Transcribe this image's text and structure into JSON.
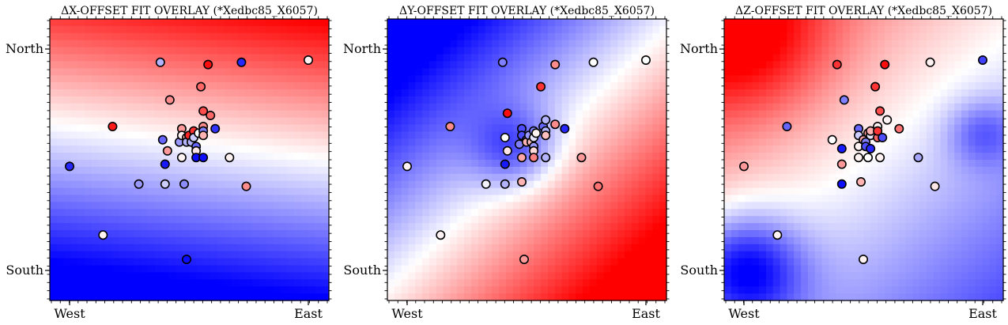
{
  "chart_data": [
    {
      "type": "scatter",
      "title": "ΔX-OFFSET FIT OVERLAY (*Xedbc85_X6057)",
      "x_ticks": [
        "West",
        "East"
      ],
      "y_ticks": [
        "North",
        "South"
      ],
      "xlim": [
        0,
        1
      ],
      "ylim": [
        0,
        1
      ],
      "grid": false,
      "colormap": "bwr",
      "field": {
        "center": 0.08,
        "gx": 0.25,
        "gy": 0.95,
        "amp": 0.6,
        "scale": 1.0,
        "bumps": []
      },
      "points": [
        {
          "x": 0.0,
          "y": 0.47,
          "v": -0.85
        },
        {
          "x": 0.14,
          "y": 0.16,
          "v": 0.05
        },
        {
          "x": 0.18,
          "y": 0.65,
          "v": 0.9
        },
        {
          "x": 0.29,
          "y": 0.39,
          "v": -0.4
        },
        {
          "x": 0.38,
          "y": 0.94,
          "v": -0.3
        },
        {
          "x": 0.39,
          "y": 0.59,
          "v": -0.6
        },
        {
          "x": 0.4,
          "y": 0.48,
          "v": -0.9
        },
        {
          "x": 0.4,
          "y": 0.39,
          "v": -0.2
        },
        {
          "x": 0.41,
          "y": 0.54,
          "v": 0.4
        },
        {
          "x": 0.42,
          "y": 0.77,
          "v": 0.45
        },
        {
          "x": 0.46,
          "y": 0.58,
          "v": -0.4
        },
        {
          "x": 0.47,
          "y": 0.64,
          "v": 0.4
        },
        {
          "x": 0.47,
          "y": 0.61,
          "v": 0.05
        },
        {
          "x": 0.47,
          "y": 0.51,
          "v": 0.05
        },
        {
          "x": 0.48,
          "y": 0.39,
          "v": -0.45
        },
        {
          "x": 0.49,
          "y": 0.6,
          "v": 0.3
        },
        {
          "x": 0.49,
          "y": 0.58,
          "v": -0.3
        },
        {
          "x": 0.49,
          "y": 0.05,
          "v": -0.95
        },
        {
          "x": 0.5,
          "y": 0.61,
          "v": 0.85
        },
        {
          "x": 0.51,
          "y": 0.58,
          "v": -0.3
        },
        {
          "x": 0.52,
          "y": 0.63,
          "v": 0.8
        },
        {
          "x": 0.52,
          "y": 0.6,
          "v": -0.2
        },
        {
          "x": 0.53,
          "y": 0.56,
          "v": -0.6
        },
        {
          "x": 0.53,
          "y": 0.54,
          "v": 0.1
        },
        {
          "x": 0.53,
          "y": 0.51,
          "v": -0.95
        },
        {
          "x": 0.54,
          "y": 0.62,
          "v": 0.0
        },
        {
          "x": 0.55,
          "y": 0.83,
          "v": 0.6
        },
        {
          "x": 0.56,
          "y": 0.65,
          "v": 0.45
        },
        {
          "x": 0.56,
          "y": 0.63,
          "v": -0.5
        },
        {
          "x": 0.56,
          "y": 0.61,
          "v": 0.3
        },
        {
          "x": 0.56,
          "y": 0.72,
          "v": 0.7
        },
        {
          "x": 0.56,
          "y": 0.51,
          "v": -0.95
        },
        {
          "x": 0.58,
          "y": 0.93,
          "v": 0.95
        },
        {
          "x": 0.59,
          "y": 0.7,
          "v": 0.6
        },
        {
          "x": 0.61,
          "y": 0.64,
          "v": -0.8
        },
        {
          "x": 0.67,
          "y": 0.51,
          "v": 0.05
        },
        {
          "x": 0.72,
          "y": 0.94,
          "v": -0.85
        },
        {
          "x": 0.74,
          "y": 0.38,
          "v": 0.45
        },
        {
          "x": 1.0,
          "y": 0.95,
          "v": 0.05
        }
      ]
    },
    {
      "type": "scatter",
      "title": "ΔY-OFFSET FIT OVERLAY (*Xedbc85_X6057)",
      "x_ticks": [
        "West",
        "East"
      ],
      "y_ticks": [
        "North",
        "South"
      ],
      "xlim": [
        0,
        1
      ],
      "ylim": [
        0,
        1
      ],
      "grid": false,
      "colormap": "bwr",
      "field": {
        "center": 0.0,
        "gx": 0.9,
        "gy": -0.9,
        "amp": 0.0,
        "scale": 1.3,
        "bumps": [
          {
            "x": 0.45,
            "y": 0.55,
            "r": 0.18,
            "a": -0.45
          }
        ]
      },
      "points": [
        {
          "x": 0.0,
          "y": 0.47,
          "v": 0.05
        },
        {
          "x": 0.14,
          "y": 0.16,
          "v": 0.05
        },
        {
          "x": 0.18,
          "y": 0.65,
          "v": 0.45
        },
        {
          "x": 0.33,
          "y": 0.39,
          "v": -0.05
        },
        {
          "x": 0.4,
          "y": 0.94,
          "v": -0.5
        },
        {
          "x": 0.41,
          "y": 0.6,
          "v": 0.0
        },
        {
          "x": 0.41,
          "y": 0.48,
          "v": -0.9
        },
        {
          "x": 0.41,
          "y": 0.39,
          "v": -0.3
        },
        {
          "x": 0.42,
          "y": 0.54,
          "v": 0.1
        },
        {
          "x": 0.42,
          "y": 0.71,
          "v": 0.95
        },
        {
          "x": 0.47,
          "y": 0.57,
          "v": -0.5
        },
        {
          "x": 0.48,
          "y": 0.64,
          "v": -0.7
        },
        {
          "x": 0.48,
          "y": 0.61,
          "v": -0.7
        },
        {
          "x": 0.48,
          "y": 0.51,
          "v": 0.35
        },
        {
          "x": 0.48,
          "y": 0.4,
          "v": 0.3
        },
        {
          "x": 0.5,
          "y": 0.59,
          "v": -0.5
        },
        {
          "x": 0.5,
          "y": 0.58,
          "v": 0.3
        },
        {
          "x": 0.49,
          "y": 0.05,
          "v": 0.4
        },
        {
          "x": 0.51,
          "y": 0.61,
          "v": -0.4
        },
        {
          "x": 0.52,
          "y": 0.58,
          "v": 0.25
        },
        {
          "x": 0.53,
          "y": 0.63,
          "v": -0.5
        },
        {
          "x": 0.53,
          "y": 0.6,
          "v": -0.1
        },
        {
          "x": 0.53,
          "y": 0.56,
          "v": -0.4
        },
        {
          "x": 0.53,
          "y": 0.54,
          "v": 0.15
        },
        {
          "x": 0.53,
          "y": 0.51,
          "v": 0.5
        },
        {
          "x": 0.54,
          "y": 0.62,
          "v": 0.05
        },
        {
          "x": 0.56,
          "y": 0.83,
          "v": 0.8
        },
        {
          "x": 0.57,
          "y": 0.65,
          "v": -0.6
        },
        {
          "x": 0.58,
          "y": 0.63,
          "v": -0.3
        },
        {
          "x": 0.58,
          "y": 0.61,
          "v": 0.25
        },
        {
          "x": 0.58,
          "y": 0.68,
          "v": -0.3
        },
        {
          "x": 0.58,
          "y": 0.51,
          "v": -0.3
        },
        {
          "x": 0.62,
          "y": 0.93,
          "v": 0.45
        },
        {
          "x": 0.62,
          "y": 0.66,
          "v": 0.45
        },
        {
          "x": 0.66,
          "y": 0.64,
          "v": -0.85
        },
        {
          "x": 0.73,
          "y": 0.51,
          "v": 0.4
        },
        {
          "x": 0.78,
          "y": 0.94,
          "v": 0.0
        },
        {
          "x": 0.8,
          "y": 0.38,
          "v": 0.55
        },
        {
          "x": 1.0,
          "y": 0.95,
          "v": 0.0
        }
      ]
    },
    {
      "type": "scatter",
      "title": "ΔZ-OFFSET FIT OVERLAY (*Xedbc85_X6057)",
      "x_ticks": [
        "West",
        "East"
      ],
      "y_ticks": [
        "North",
        "South"
      ],
      "xlim": [
        0,
        1
      ],
      "ylim": [
        0,
        1
      ],
      "grid": false,
      "colormap": "bwr",
      "field": {
        "center": 0.0,
        "gx": -0.55,
        "gy": 0.6,
        "amp": 0.0,
        "scale": 1.0,
        "bumps": [
          {
            "x": 0.0,
            "y": 0.0,
            "r": 0.25,
            "a": -1.0
          },
          {
            "x": 1.0,
            "y": 0.62,
            "r": 0.15,
            "a": -0.45
          },
          {
            "x": 0.0,
            "y": 1.05,
            "r": 0.35,
            "a": 0.6
          }
        ]
      },
      "points": [
        {
          "x": 0.0,
          "y": 0.47,
          "v": 0.4
        },
        {
          "x": 0.14,
          "y": 0.16,
          "v": 0.05
        },
        {
          "x": 0.18,
          "y": 0.65,
          "v": -0.6
        },
        {
          "x": 0.37,
          "y": 0.59,
          "v": 0.0
        },
        {
          "x": 0.39,
          "y": 0.93,
          "v": 0.8
        },
        {
          "x": 0.41,
          "y": 0.48,
          "v": 0.4
        },
        {
          "x": 0.41,
          "y": 0.55,
          "v": -0.9
        },
        {
          "x": 0.41,
          "y": 0.39,
          "v": -0.95
        },
        {
          "x": 0.42,
          "y": 0.77,
          "v": -0.5
        },
        {
          "x": 0.48,
          "y": 0.56,
          "v": 0.05
        },
        {
          "x": 0.48,
          "y": 0.51,
          "v": 0.05
        },
        {
          "x": 0.48,
          "y": 0.64,
          "v": -0.6
        },
        {
          "x": 0.48,
          "y": 0.61,
          "v": -0.2
        },
        {
          "x": 0.49,
          "y": 0.4,
          "v": 0.3
        },
        {
          "x": 0.5,
          "y": 0.59,
          "v": 0.35
        },
        {
          "x": 0.5,
          "y": 0.05,
          "v": 0.05
        },
        {
          "x": 0.51,
          "y": 0.58,
          "v": -0.5
        },
        {
          "x": 0.51,
          "y": 0.56,
          "v": -0.7
        },
        {
          "x": 0.52,
          "y": 0.62,
          "v": 0.4
        },
        {
          "x": 0.52,
          "y": 0.51,
          "v": 0.0
        },
        {
          "x": 0.53,
          "y": 0.61,
          "v": -0.1
        },
        {
          "x": 0.53,
          "y": 0.63,
          "v": 0.3
        },
        {
          "x": 0.53,
          "y": 0.55,
          "v": -0.85
        },
        {
          "x": 0.55,
          "y": 0.83,
          "v": 0.8
        },
        {
          "x": 0.56,
          "y": 0.65,
          "v": 0.05
        },
        {
          "x": 0.56,
          "y": 0.6,
          "v": 0.6
        },
        {
          "x": 0.56,
          "y": 0.63,
          "v": 0.8
        },
        {
          "x": 0.57,
          "y": 0.51,
          "v": 0.05
        },
        {
          "x": 0.57,
          "y": 0.72,
          "v": 0.7
        },
        {
          "x": 0.58,
          "y": 0.6,
          "v": -0.7
        },
        {
          "x": 0.59,
          "y": 0.93,
          "v": 0.95
        },
        {
          "x": 0.6,
          "y": 0.68,
          "v": 0.05
        },
        {
          "x": 0.65,
          "y": 0.64,
          "v": 0.55
        },
        {
          "x": 0.73,
          "y": 0.51,
          "v": -0.35
        },
        {
          "x": 0.78,
          "y": 0.94,
          "v": 0.05
        },
        {
          "x": 0.8,
          "y": 0.38,
          "v": 0.1
        },
        {
          "x": 1.0,
          "y": 0.95,
          "v": -0.75
        }
      ]
    }
  ]
}
